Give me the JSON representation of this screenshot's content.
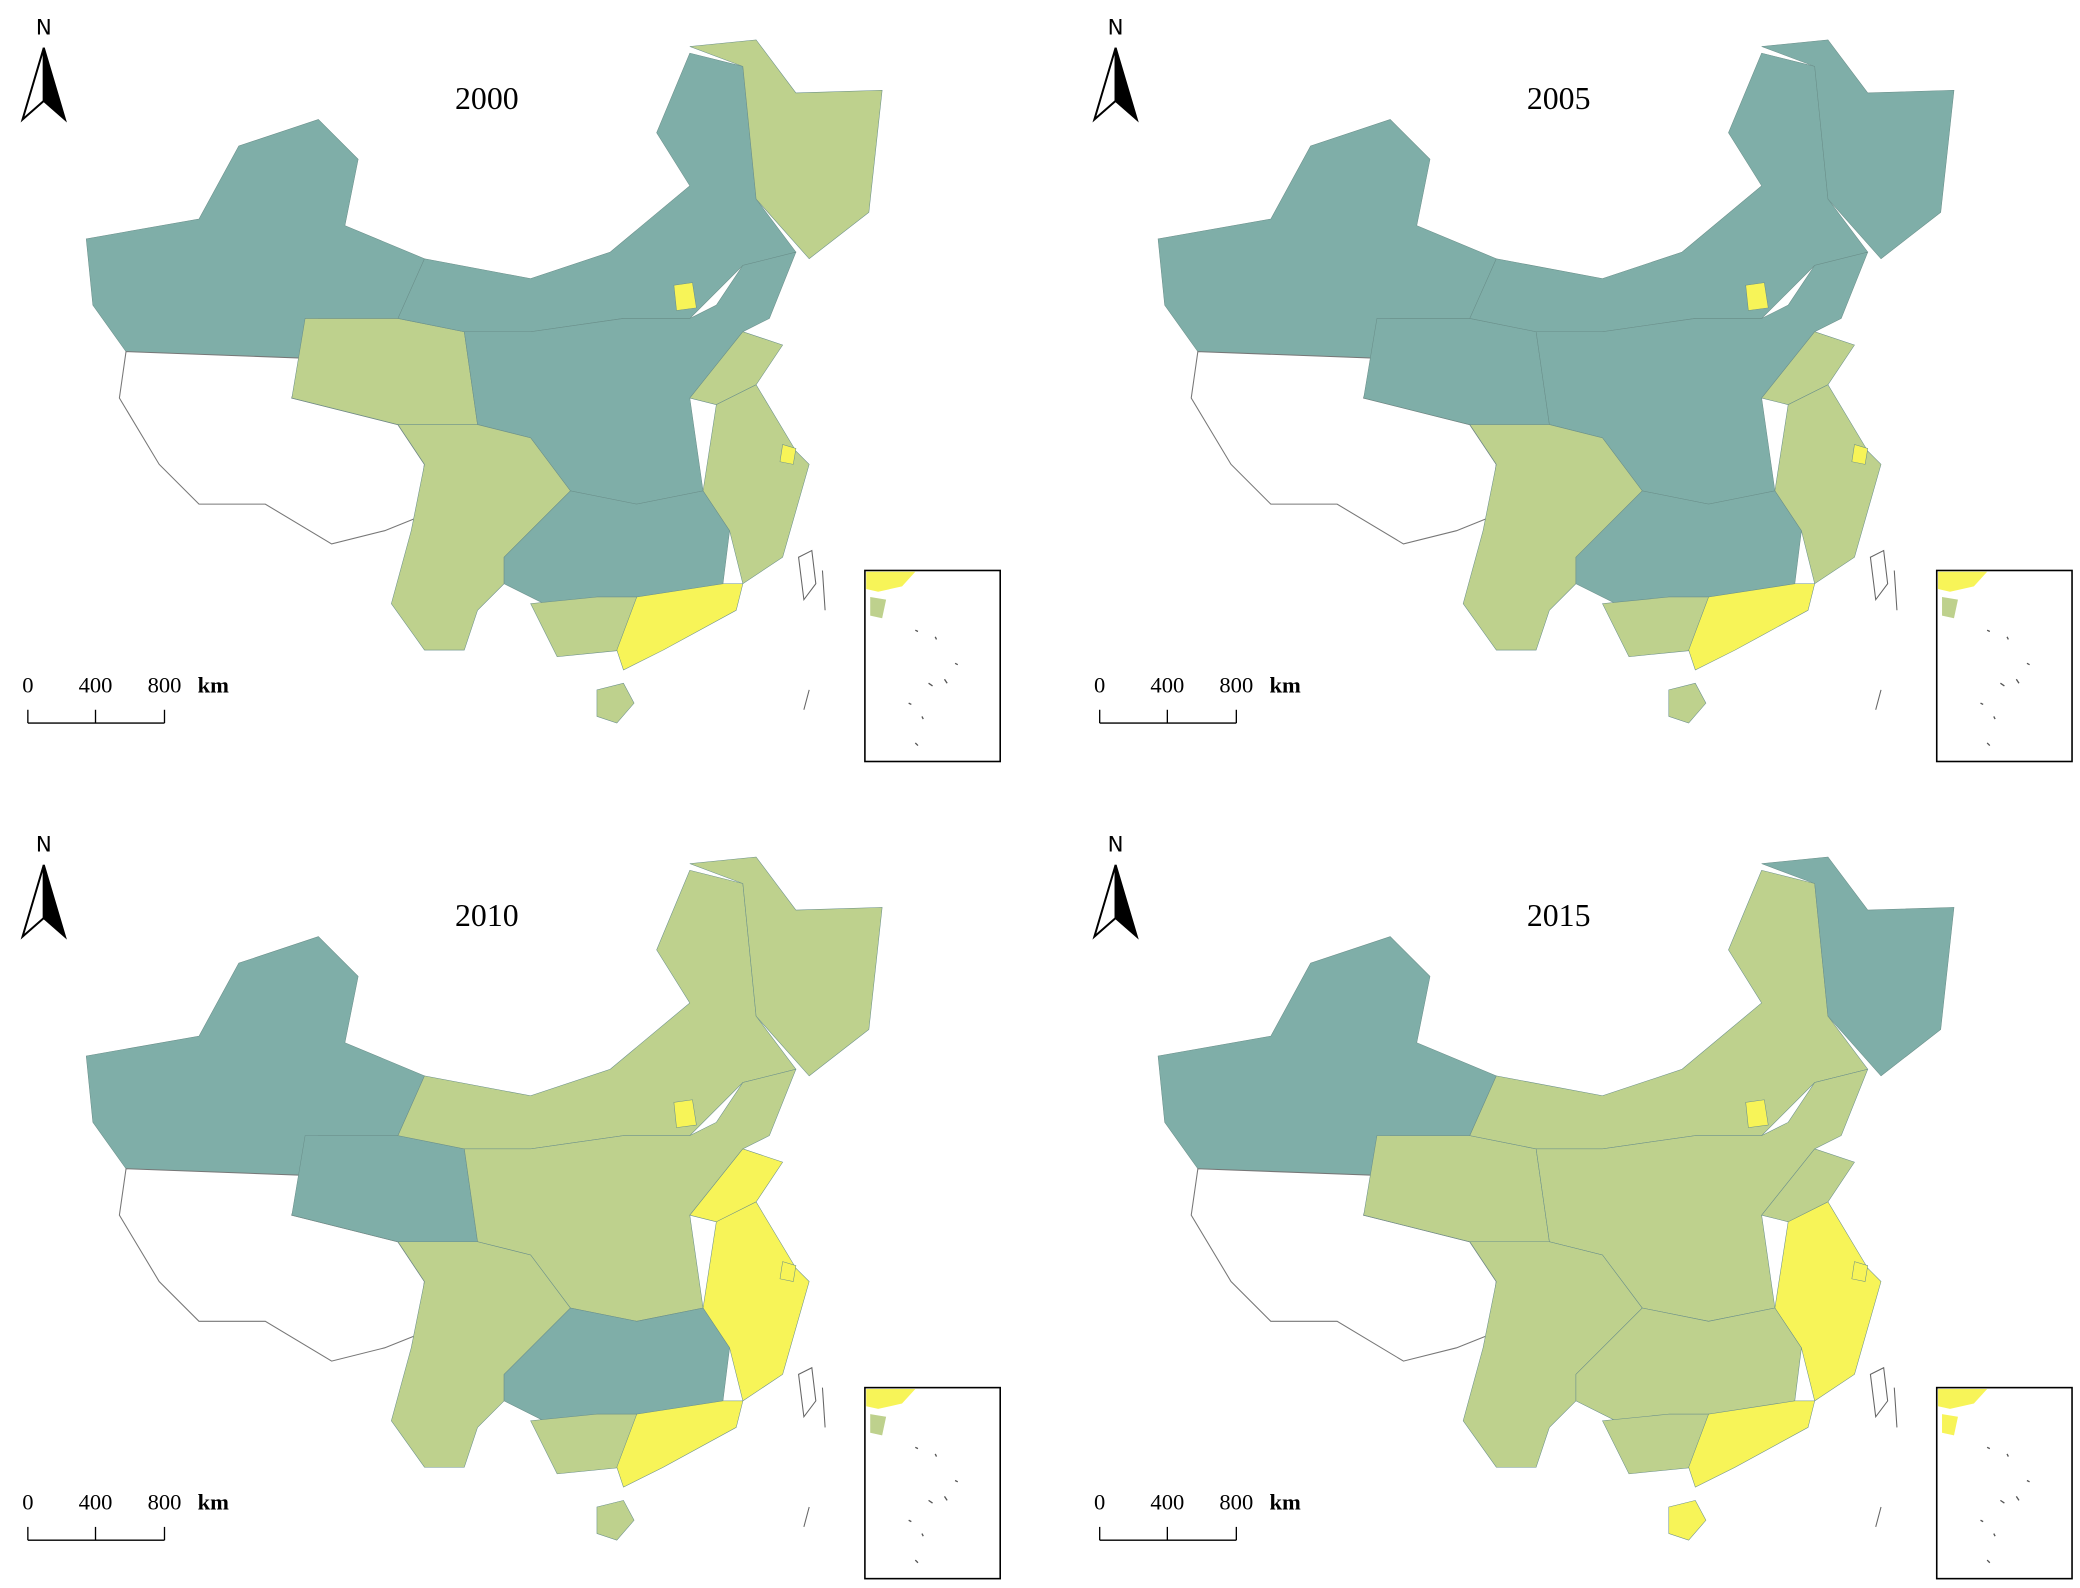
{
  "north_label": "N",
  "scale_labels": [
    "0",
    "400",
    "800"
  ],
  "scale_unit": "km",
  "panels": [
    {
      "title": "2000",
      "fills": [
        "#7faea8",
        "#ffffff",
        "#bed18d",
        "#7faea8",
        "#bed18d",
        "#7faea8",
        "#f7f458",
        "#bed18d",
        "#bed18d",
        "#f7f458",
        "#bed18d",
        "#7faea8",
        "#bed18d",
        "#f7f458",
        "#bed18d"
      ]
    },
    {
      "title": "2005",
      "fills": [
        "#7faea8",
        "#ffffff",
        "#7faea8",
        "#7faea8",
        "#7faea8",
        "#7faea8",
        "#f7f458",
        "#bed18d",
        "#bed18d",
        "#f7f458",
        "#bed18d",
        "#7faea8",
        "#bed18d",
        "#f7f458",
        "#bed18d"
      ]
    },
    {
      "title": "2010",
      "fills": [
        "#7faea8",
        "#ffffff",
        "#7faea8",
        "#bed18d",
        "#bed18d",
        "#bed18d",
        "#f7f458",
        "#f7f458",
        "#f7f458",
        "#f7f458",
        "#bed18d",
        "#7faea8",
        "#bed18d",
        "#f7f458",
        "#bed18d"
      ]
    },
    {
      "title": "2015",
      "fills": [
        "#7faea8",
        "#ffffff",
        "#bed18d",
        "#bed18d",
        "#7faea8",
        "#bed18d",
        "#f7f458",
        "#bed18d",
        "#f7f458",
        "#f7f458",
        "#bed18d",
        "#bed18d",
        "#bed18d",
        "#f7f458",
        "#f7f458"
      ]
    }
  ]
}
